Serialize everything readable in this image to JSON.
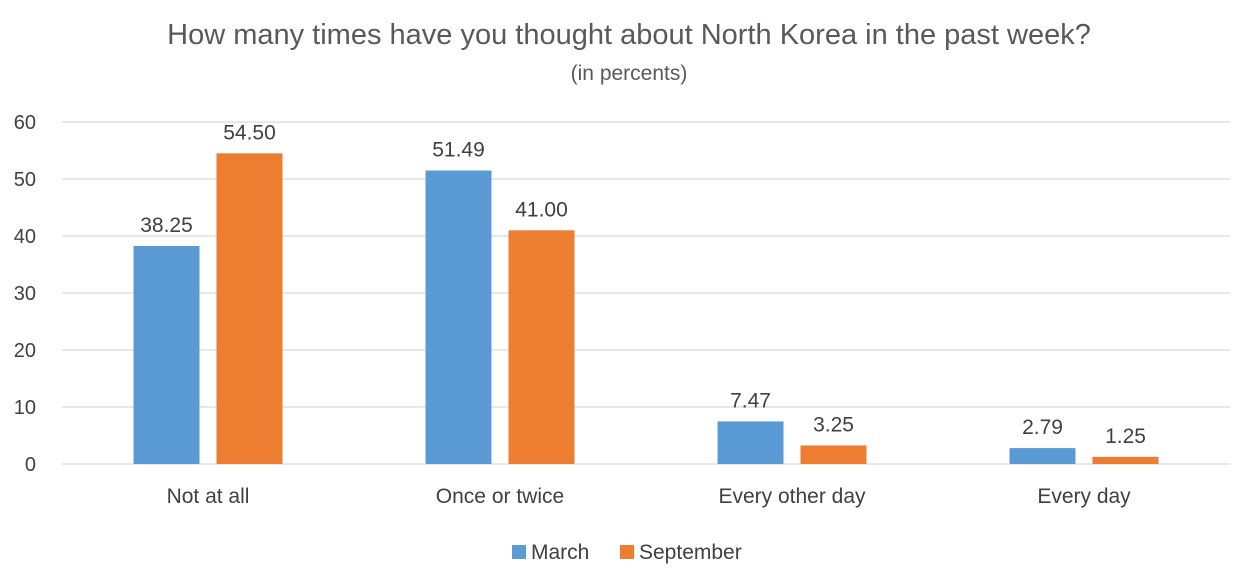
{
  "chart_data": {
    "type": "bar",
    "title": "How many times have you thought about North Korea in the past week?",
    "subtitle": "(in percents)",
    "categories": [
      "Not at all",
      "Once or twice",
      "Every other day",
      "Every day"
    ],
    "series": [
      {
        "name": "March",
        "color": "#5B9BD5",
        "values": [
          38.25,
          51.49,
          7.47,
          2.79
        ],
        "labels": [
          "38.25",
          "51.49",
          "7.47",
          "2.79"
        ]
      },
      {
        "name": "September",
        "color": "#ED7D31",
        "values": [
          54.5,
          41.0,
          3.25,
          1.25
        ],
        "labels": [
          "54.50",
          "41.00",
          "3.25",
          "1.25"
        ]
      }
    ],
    "ylim": [
      0,
      60
    ],
    "yticks": [
      "0",
      "10",
      "20",
      "30",
      "40",
      "50",
      "60"
    ],
    "grid": true,
    "gridColor": "#D9D9D9",
    "legend": "bottom"
  }
}
